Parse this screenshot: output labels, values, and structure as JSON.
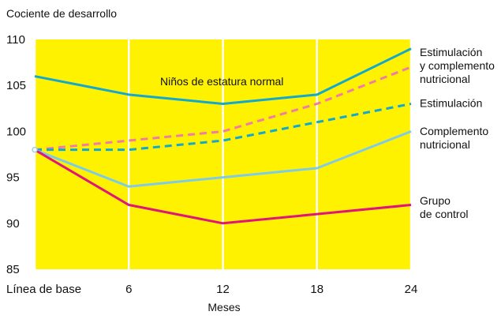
{
  "chart_data": {
    "type": "line",
    "ylabel": "Cociente de desarrollo",
    "xlabel": "Meses",
    "x": [
      "Línea de base",
      "6",
      "12",
      "18",
      "24"
    ],
    "ylim": [
      85,
      110
    ],
    "yticks": [
      85,
      90,
      95,
      100,
      105,
      110
    ],
    "grid": true,
    "background_color": "#FFF200",
    "series": [
      {
        "name": "Niños de estatura normal",
        "values": [
          106,
          104,
          103,
          104,
          109
        ],
        "color": "#14A9CC",
        "dashed": false,
        "label_lines": [
          "Niños de estatura normal"
        ]
      },
      {
        "name": "Estimulación y complemento nutricional",
        "values": [
          98,
          99,
          100,
          103,
          107
        ],
        "color": "#F27AA6",
        "dashed": true,
        "label_lines": [
          "Estimulación",
          "y complemento",
          "nutricional"
        ]
      },
      {
        "name": "Estimulación",
        "values": [
          98,
          98,
          99,
          101,
          103
        ],
        "color": "#14A9CC",
        "dashed": true,
        "label_lines": [
          "Estimulación"
        ]
      },
      {
        "name": "Complemento nutricional",
        "values": [
          98,
          94,
          95,
          96,
          100
        ],
        "color": "#7FCBE6",
        "dashed": false,
        "label_lines": [
          "Complemento",
          "nutricional"
        ]
      },
      {
        "name": "Grupo de control",
        "values": [
          98,
          92,
          90,
          91,
          92
        ],
        "color": "#E0157A",
        "dashed": false,
        "label_lines": [
          "Grupo",
          "de control"
        ]
      }
    ]
  }
}
